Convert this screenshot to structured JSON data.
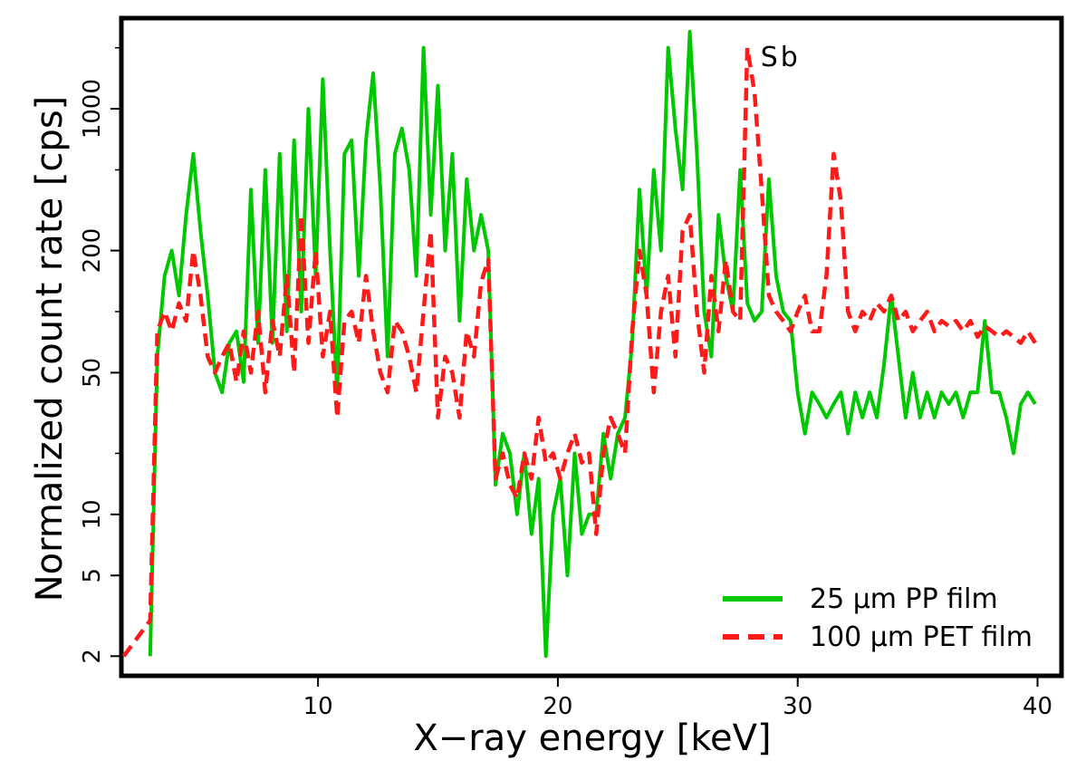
{
  "chart_data": {
    "type": "line",
    "xlabel": "X−ray energy [keV]",
    "ylabel": "Normalized count rate [cps]",
    "xlim": [
      1.8,
      41.0
    ],
    "ylim": [
      1.6,
      2800
    ],
    "yscale": "log",
    "xticks": [
      10,
      20,
      30,
      40
    ],
    "xtick_labels": [
      "10",
      "20",
      "30",
      "40"
    ],
    "yticks": [
      2,
      5,
      10,
      50,
      200,
      1000
    ],
    "ytick_labels": [
      "2",
      "5",
      "10",
      "50",
      "200",
      "1000"
    ],
    "grid": false,
    "legend_position": "bottom-right",
    "annotations": [
      {
        "text": "Sb",
        "x": 28.0,
        "y": 1800
      }
    ],
    "series": [
      {
        "name": "25 µm PP film",
        "color": "#00c800",
        "style": "solid",
        "x": [
          3.0,
          3.3,
          3.6,
          3.9,
          4.2,
          4.5,
          4.8,
          5.1,
          5.4,
          5.7,
          6.0,
          6.3,
          6.6,
          6.9,
          7.2,
          7.5,
          7.8,
          8.1,
          8.4,
          8.7,
          9.0,
          9.3,
          9.6,
          9.9,
          10.2,
          10.5,
          10.8,
          11.1,
          11.4,
          11.7,
          12.0,
          12.3,
          12.6,
          12.9,
          13.2,
          13.5,
          13.8,
          14.1,
          14.4,
          14.7,
          15.0,
          15.3,
          15.6,
          15.9,
          16.2,
          16.5,
          16.8,
          17.1,
          17.4,
          17.7,
          18.0,
          18.3,
          18.6,
          18.9,
          19.2,
          19.5,
          19.8,
          20.1,
          20.4,
          20.7,
          21.0,
          21.3,
          21.6,
          21.9,
          22.2,
          22.5,
          22.8,
          23.1,
          23.4,
          23.7,
          24.0,
          24.3,
          24.6,
          24.9,
          25.2,
          25.5,
          25.8,
          26.1,
          26.4,
          26.7,
          27.0,
          27.3,
          27.6,
          27.9,
          28.2,
          28.5,
          28.8,
          29.1,
          29.4,
          29.7,
          30.0,
          30.3,
          30.6,
          30.9,
          31.2,
          31.5,
          31.8,
          32.1,
          32.4,
          32.7,
          33.0,
          33.3,
          33.6,
          33.9,
          34.2,
          34.5,
          34.8,
          35.1,
          35.4,
          35.7,
          36.0,
          36.3,
          36.6,
          36.9,
          37.2,
          37.5,
          37.8,
          38.1,
          38.4,
          38.7,
          39.0,
          39.3,
          39.6,
          39.9
        ],
        "y": [
          2,
          60,
          150,
          200,
          120,
          300,
          600,
          250,
          120,
          50,
          40,
          70,
          80,
          45,
          400,
          70,
          500,
          70,
          600,
          80,
          700,
          100,
          1000,
          150,
          1400,
          200,
          40,
          600,
          700,
          150,
          700,
          1500,
          400,
          60,
          600,
          800,
          500,
          150,
          2000,
          300,
          1300,
          200,
          600,
          90,
          450,
          200,
          300,
          200,
          14,
          25,
          20,
          10,
          20,
          8,
          15,
          2,
          10,
          15,
          5,
          20,
          8,
          10,
          10,
          25,
          15,
          25,
          30,
          70,
          400,
          120,
          500,
          200,
          2000,
          800,
          400,
          2400,
          600,
          100,
          60,
          300,
          150,
          100,
          500,
          110,
          90,
          100,
          450,
          150,
          100,
          90,
          40,
          25,
          40,
          35,
          30,
          35,
          40,
          25,
          40,
          30,
          40,
          30,
          55,
          120,
          60,
          30,
          50,
          30,
          40,
          30,
          40,
          35,
          40,
          30,
          40,
          40,
          90,
          40,
          40,
          30,
          20,
          35,
          40,
          35
        ],
        "y_note_unused": null
      },
      {
        "name": "100 µm PET film",
        "color": "#ff1a1a",
        "style": "dashed",
        "x": [
          1.9,
          3.0,
          3.3,
          3.6,
          3.9,
          4.2,
          4.5,
          4.8,
          5.1,
          5.4,
          5.7,
          6.0,
          6.3,
          6.6,
          6.9,
          7.2,
          7.5,
          7.8,
          8.1,
          8.4,
          8.7,
          9.0,
          9.3,
          9.6,
          9.9,
          10.2,
          10.5,
          10.8,
          11.1,
          11.4,
          11.7,
          12.0,
          12.3,
          12.6,
          12.9,
          13.2,
          13.5,
          13.8,
          14.1,
          14.4,
          14.7,
          15.0,
          15.3,
          15.6,
          15.9,
          16.2,
          16.5,
          16.8,
          17.1,
          17.4,
          17.7,
          18.0,
          18.3,
          18.6,
          18.9,
          19.2,
          19.5,
          19.8,
          20.1,
          20.4,
          20.7,
          21.0,
          21.3,
          21.6,
          21.9,
          22.2,
          22.5,
          22.8,
          23.1,
          23.4,
          23.7,
          24.0,
          24.3,
          24.6,
          24.9,
          25.2,
          25.5,
          25.8,
          26.1,
          26.4,
          26.7,
          27.0,
          27.3,
          27.6,
          27.9,
          28.2,
          28.5,
          28.8,
          29.1,
          29.4,
          29.7,
          30.0,
          30.3,
          30.6,
          30.9,
          31.2,
          31.5,
          31.8,
          32.1,
          32.4,
          32.7,
          33.0,
          33.3,
          33.6,
          33.9,
          34.2,
          34.5,
          34.8,
          35.1,
          35.4,
          35.7,
          36.0,
          36.3,
          36.6,
          36.9,
          37.2,
          37.5,
          37.8,
          38.1,
          38.4,
          38.7,
          39.0,
          39.3,
          39.6,
          39.9
        ],
        "y": [
          2,
          3,
          80,
          100,
          80,
          110,
          90,
          200,
          120,
          60,
          50,
          60,
          70,
          45,
          80,
          50,
          100,
          40,
          90,
          60,
          150,
          50,
          300,
          70,
          200,
          60,
          100,
          30,
          90,
          100,
          70,
          150,
          80,
          50,
          40,
          90,
          80,
          60,
          40,
          100,
          250,
          30,
          60,
          50,
          30,
          80,
          60,
          140,
          180,
          15,
          20,
          14,
          12,
          20,
          15,
          30,
          18,
          20,
          15,
          20,
          25,
          18,
          20,
          8,
          20,
          30,
          25,
          20,
          80,
          200,
          120,
          40,
          100,
          150,
          60,
          250,
          300,
          100,
          50,
          150,
          80,
          180,
          100,
          90,
          2000,
          1200,
          400,
          120,
          100,
          90,
          80,
          100,
          120,
          80,
          80,
          150,
          600,
          350,
          100,
          80,
          100,
          90,
          110,
          100,
          120,
          90,
          100,
          80,
          90,
          100,
          80,
          90,
          85,
          90,
          80,
          90,
          75,
          85,
          80,
          75,
          80,
          75,
          70,
          80,
          70
        ]
      }
    ]
  }
}
